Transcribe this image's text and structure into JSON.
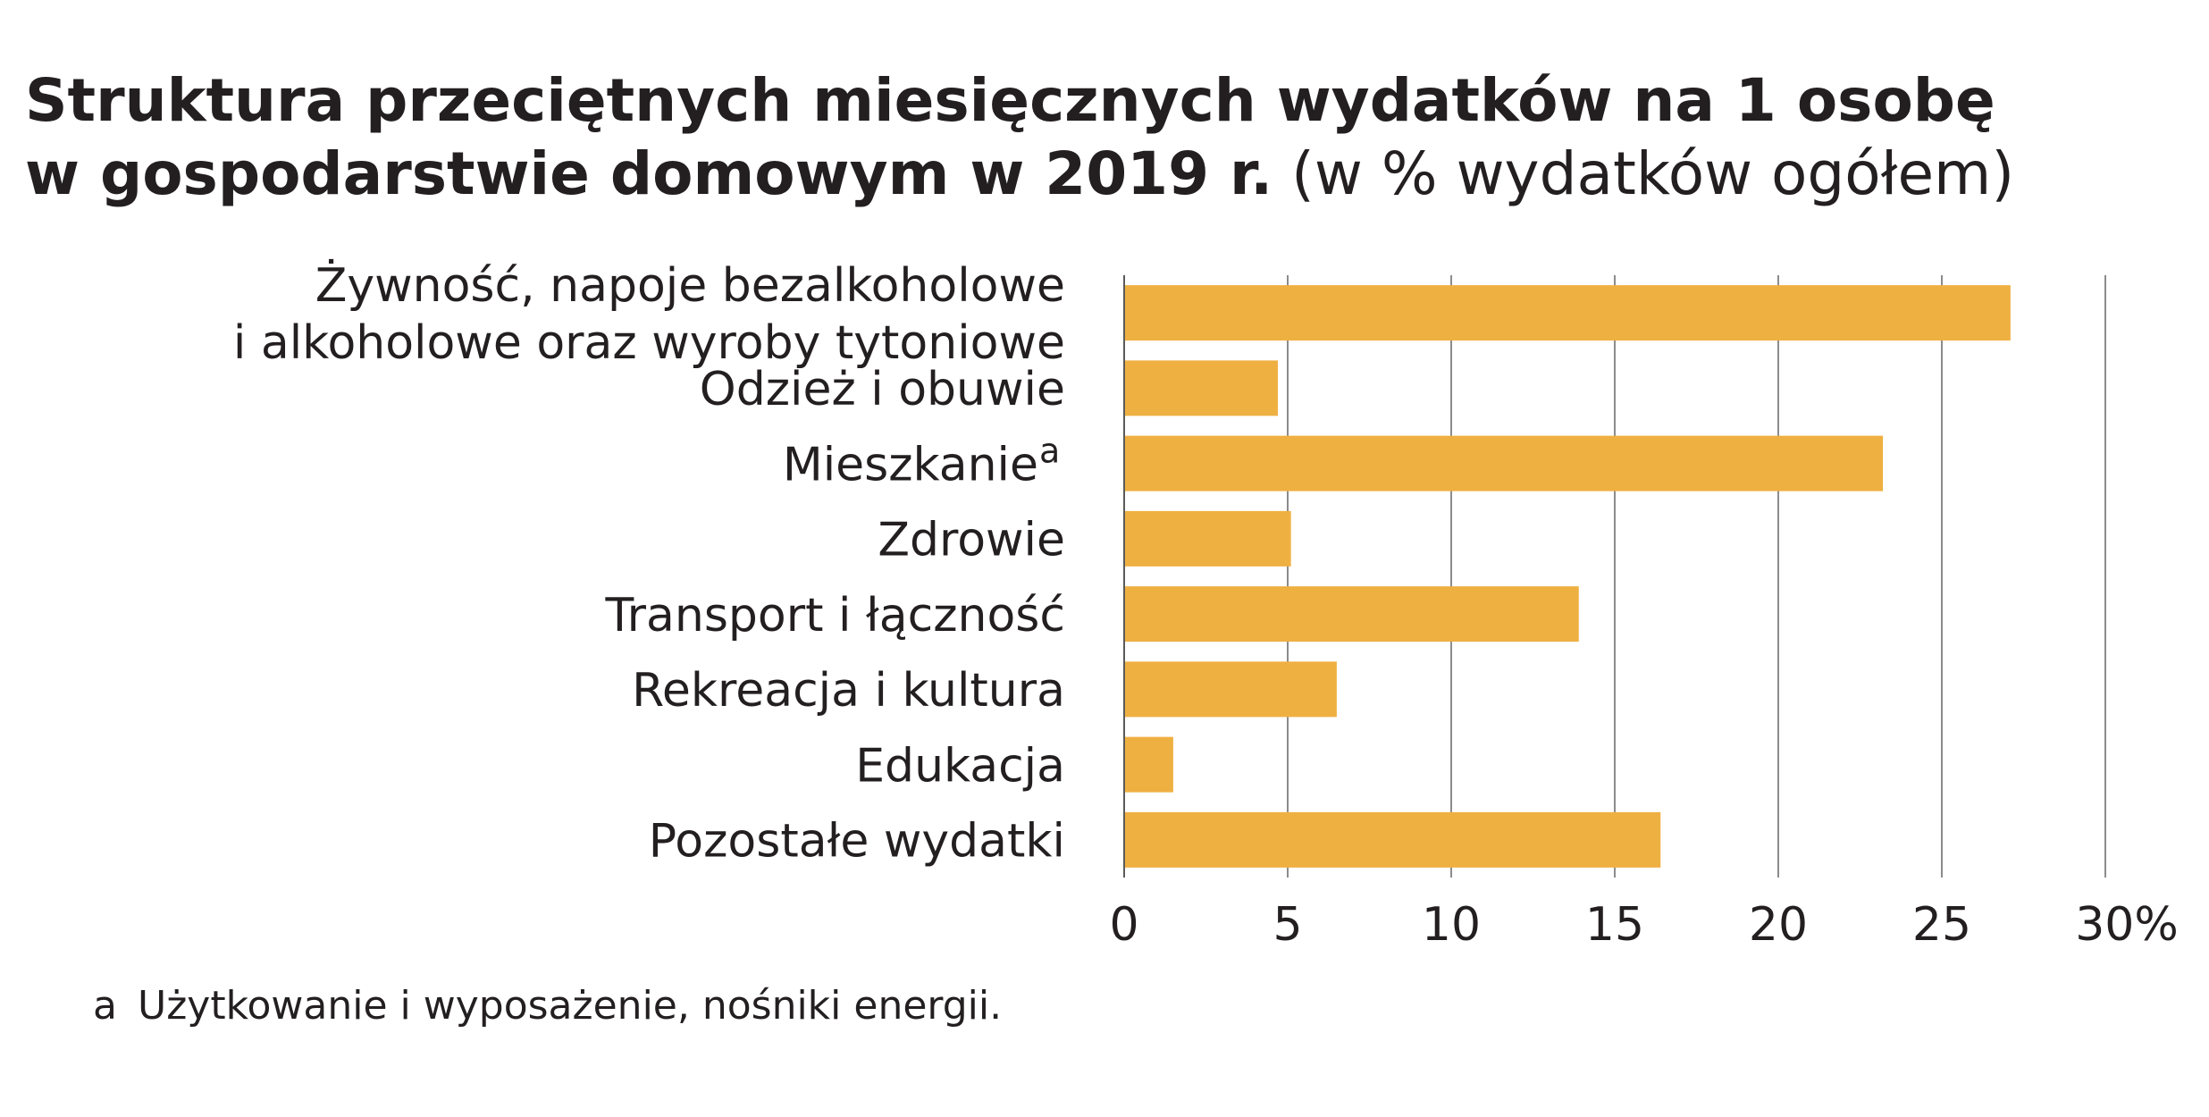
{
  "title": {
    "line1": "Struktura przeciętnych miesięcznych wydatków na 1 osobę",
    "line2_bold": "w gospodarstwie domowym w 2019 r.",
    "line2_normal": "(w % wydatków ogółem)"
  },
  "footnote": {
    "marker": "a",
    "text": "Użytkowanie i wyposażenie, nośniki energii."
  },
  "colors": {
    "bar": "#efb042",
    "grid": "#8c8c8c",
    "axis": "#5a5a5a",
    "text": "#231f20"
  },
  "chart_data": {
    "type": "bar",
    "orientation": "horizontal",
    "categories": [
      "Żywność, napoje bezalkoholowe\ni alkoholowe oraz wyroby tytoniowe",
      "Odzież i obuwie",
      "Mieszkanie",
      "Zdrowie",
      "Transport i łączność",
      "Rekreacja i kultura",
      "Edukacja",
      "Pozostałe wydatki"
    ],
    "category_superscripts": [
      "",
      "",
      "a",
      "",
      "",
      "",
      "",
      ""
    ],
    "values": [
      27.1,
      4.7,
      23.2,
      5.1,
      13.9,
      6.5,
      1.5,
      16.4
    ],
    "xlim": [
      0,
      30
    ],
    "xticks": [
      0,
      5,
      10,
      15,
      20,
      25,
      30
    ],
    "xtick_labels": [
      "0",
      "5",
      "10",
      "15",
      "20",
      "25",
      "30%"
    ],
    "grid": true,
    "legend": "none"
  }
}
